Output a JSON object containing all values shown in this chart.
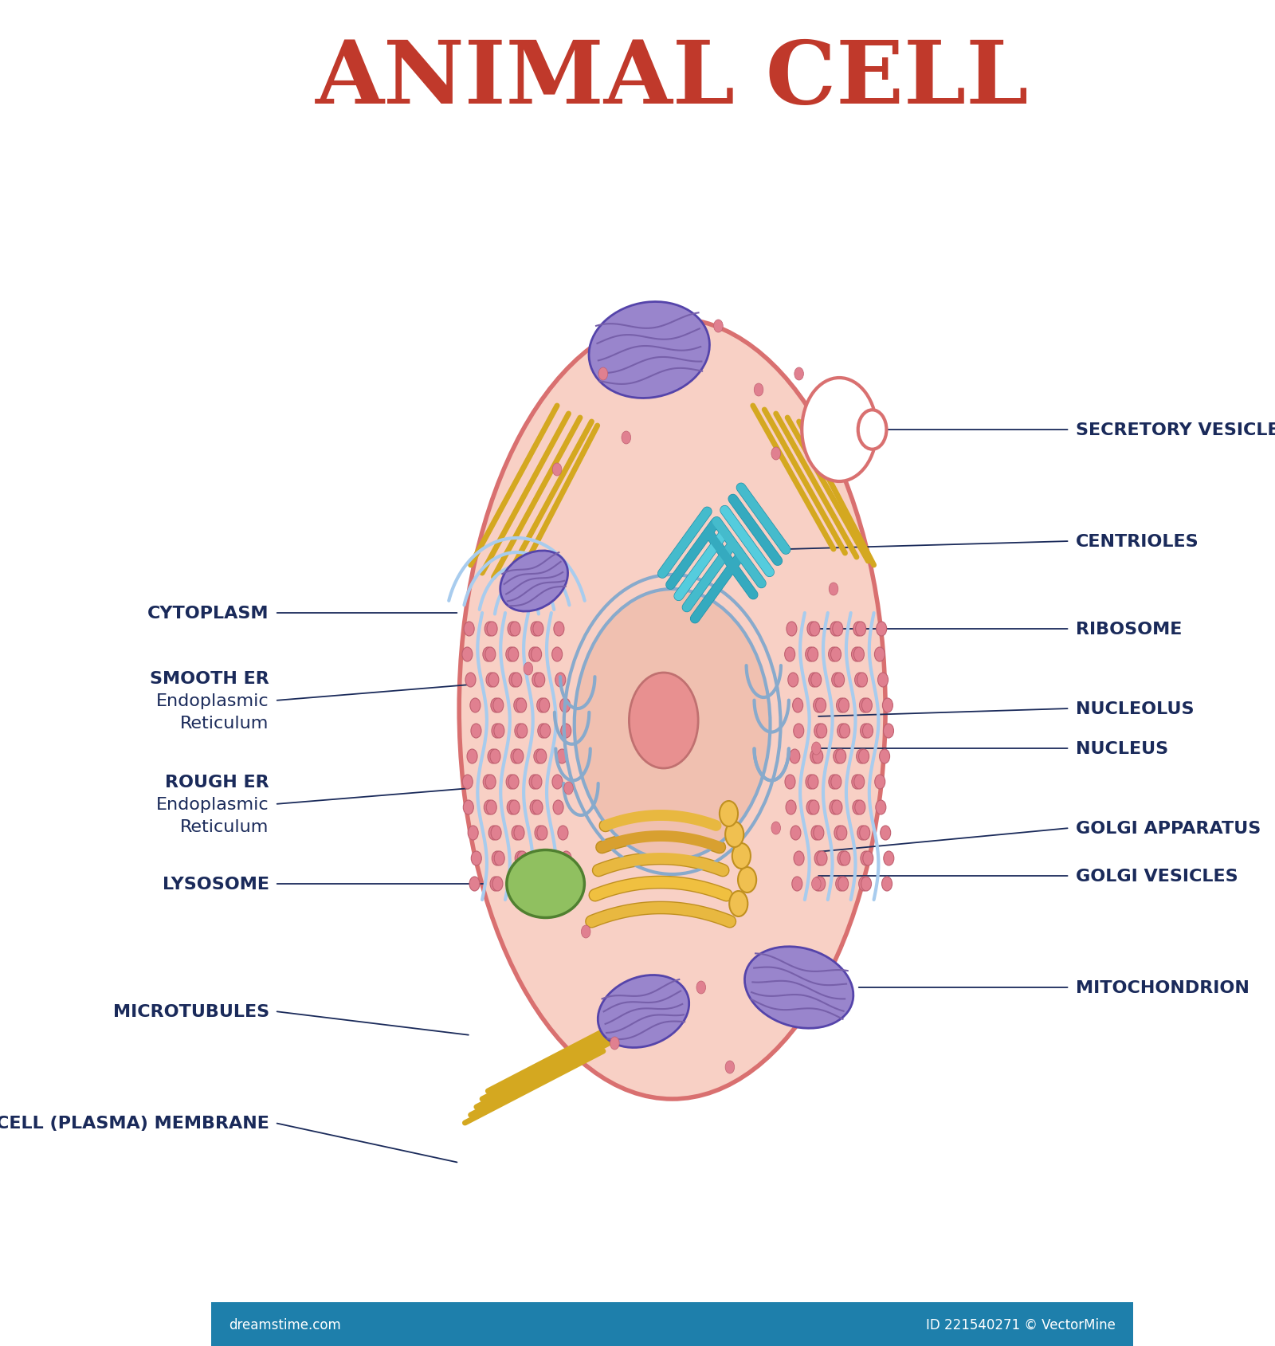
{
  "title": "ANIMAL CELL",
  "title_color": "#C0392B",
  "title_fontsize": 80,
  "bg_color": "#FFFFFF",
  "cell_fill": "#F8D0C5",
  "cell_edge": "#D97070",
  "label_color": "#1a2a5a",
  "label_fontsize": 16,
  "footer_color": "#1e7fab",
  "footer_text_left": "dreamstime.com",
  "footer_text_right": "ID 221540271 © VectorMine"
}
